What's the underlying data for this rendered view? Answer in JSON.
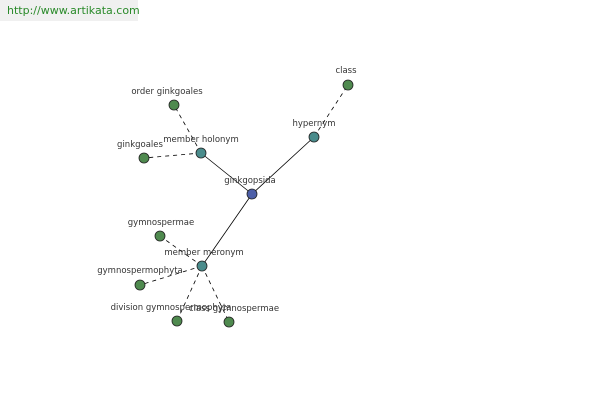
{
  "url": "http://www.artikata.com",
  "nodes": [
    {
      "label": "ginkgopsida"
    },
    {
      "label": "hypernym"
    },
    {
      "label": "class"
    },
    {
      "label": "member holonym"
    },
    {
      "label": "order ginkgoales"
    },
    {
      "label": "ginkgoales"
    },
    {
      "label": "member meronym"
    },
    {
      "label": "gymnospermae"
    },
    {
      "label": "gymnospermophyta"
    },
    {
      "label": "division gymnospermophyta"
    },
    {
      "label": "class gymnospermae"
    }
  ]
}
